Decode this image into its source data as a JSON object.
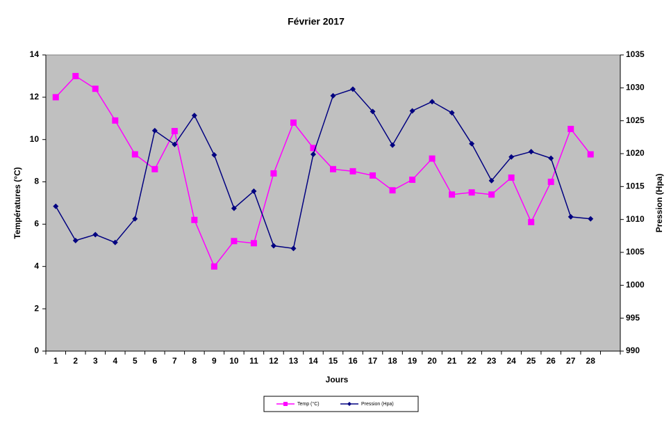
{
  "chart_data": {
    "type": "line",
    "title": "Février 2017",
    "x_label": "Jours",
    "y_label": "Températures (°C)",
    "y2_label": "Pression (Hpa)",
    "categories": [
      "1",
      "2",
      "3",
      "4",
      "5",
      "6",
      "7",
      "8",
      "9",
      "10",
      "11",
      "12",
      "13",
      "14",
      "15",
      "16",
      "17",
      "18",
      "19",
      "20",
      "21",
      "22",
      "23",
      "24",
      "25",
      "26",
      "27",
      "28"
    ],
    "series": [
      {
        "name": "Temp (°C)",
        "color": "#ff00ff",
        "marker": "square",
        "values": [
          12.0,
          13.0,
          12.4,
          10.9,
          9.3,
          8.6,
          10.4,
          6.2,
          4.0,
          5.2,
          5.1,
          8.4,
          10.8,
          9.6,
          8.6,
          8.5,
          8.3,
          7.6,
          8.1,
          9.1,
          7.4,
          7.5,
          7.4,
          8.2,
          6.1,
          8.0,
          10.5,
          9.3
        ]
      },
      {
        "name": "Pression (Hpa)",
        "color": "#000080",
        "marker": "diamond",
        "axis": "y2",
        "values": [
          1012.0,
          1006.8,
          1007.7,
          1006.5,
          1010.1,
          1023.5,
          1021.4,
          1025.8,
          1019.8,
          1011.7,
          1014.3,
          1006.0,
          1005.6,
          1019.9,
          1028.8,
          1029.8,
          1026.4,
          1021.3,
          1026.5,
          1027.9,
          1026.2,
          1021.5,
          1015.9,
          1019.5,
          1020.3,
          1019.3,
          1010.4,
          1010.1
        ]
      }
    ],
    "ylim": [
      0,
      14
    ],
    "yticks": [
      0,
      2,
      4,
      6,
      8,
      10,
      12,
      14
    ],
    "y2lim": [
      990,
      1035
    ],
    "y2ticks": [
      990,
      995,
      1000,
      1005,
      1010,
      1015,
      1020,
      1025,
      1030,
      1035
    ],
    "grid": false,
    "plot_background": "#c0c0c0",
    "legend": "bottom"
  }
}
